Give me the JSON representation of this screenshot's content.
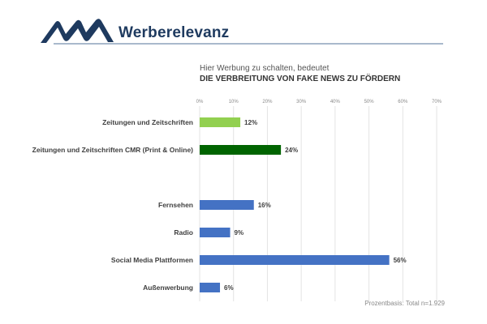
{
  "header": {
    "logo_icon": "ma-logo-icon",
    "brand": "Werberelevanz"
  },
  "colors": {
    "brand": "#1e3a5f",
    "light_green": "#92d050",
    "dark_green": "#006400",
    "blue": "#4472c4"
  },
  "footnote": "Prozentbasis: Total n=1.929",
  "chart_data": {
    "type": "bar",
    "orientation": "horizontal",
    "subtitle": "Hier Werbung zu schalten, bedeutet",
    "title": "DIE VERBREITUNG VON FAKE NEWS ZU FÖRDERN",
    "xlabel": "",
    "ylabel": "",
    "xlim": [
      0,
      70
    ],
    "ticks": [
      "0%",
      "10%",
      "20%",
      "30%",
      "40%",
      "50%",
      "60%",
      "70%"
    ],
    "tick_values": [
      0,
      10,
      20,
      30,
      40,
      50,
      60,
      70
    ],
    "grid": true,
    "categories": [
      "Zeitungen und Zeitschriften",
      "Zeitungen und Zeitschriften CMR (Print & Online)",
      "Fernsehen",
      "Radio",
      "Social Media Plattformen",
      "Außenwerbung"
    ],
    "values": [
      12,
      24,
      16,
      9,
      56,
      6
    ],
    "value_labels": [
      "12%",
      "24%",
      "16%",
      "9%",
      "56%",
      "6%"
    ],
    "bar_colors": [
      "#92d050",
      "#006400",
      "#4472c4",
      "#4472c4",
      "#4472c4",
      "#4472c4"
    ],
    "groups": [
      [
        0,
        1
      ],
      [
        2,
        3,
        4,
        5
      ]
    ]
  }
}
